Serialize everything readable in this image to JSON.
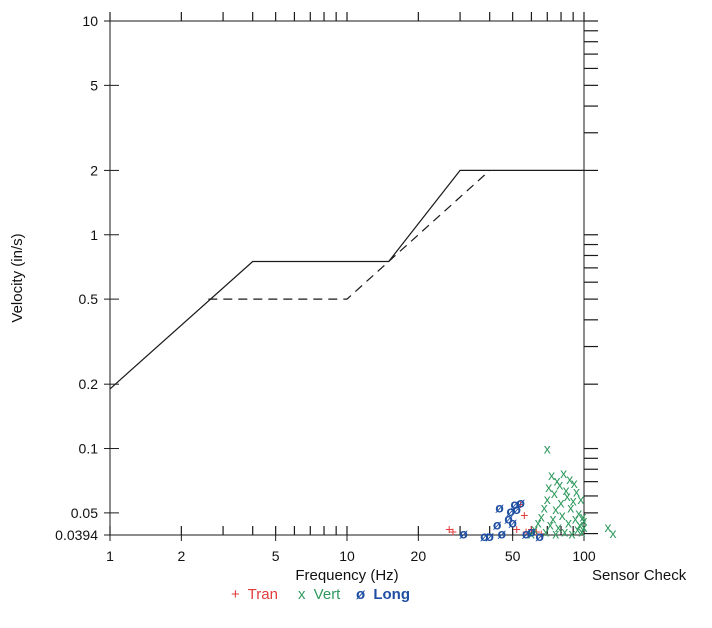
{
  "chart_data": {
    "type": "scatter",
    "xlabel": "Frequency (Hz)",
    "ylabel": "Velocity (in/s)",
    "xscale": "log",
    "yscale": "log",
    "xlim": [
      1,
      100
    ],
    "ylim": [
      0.0394,
      10
    ],
    "xticks": [
      {
        "value": 1,
        "label": "1"
      },
      {
        "value": 2,
        "label": "2"
      },
      {
        "value": 5,
        "label": "5"
      },
      {
        "value": 10,
        "label": "10"
      },
      {
        "value": 20,
        "label": "20"
      },
      {
        "value": 50,
        "label": "50"
      },
      {
        "value": 100,
        "label": "100"
      }
    ],
    "yticks": [
      {
        "value": 10,
        "label": "10"
      },
      {
        "value": 5,
        "label": "5"
      },
      {
        "value": 2,
        "label": "2"
      },
      {
        "value": 1,
        "label": "1"
      },
      {
        "value": 0.5,
        "label": "0.5"
      },
      {
        "value": 0.2,
        "label": "0.2"
      },
      {
        "value": 0.1,
        "label": "0.1"
      },
      {
        "value": 0.05,
        "label": "0.05"
      },
      {
        "value": 0.0394,
        "label": "0.0394"
      }
    ],
    "reference_lines": [
      {
        "style": "solid",
        "points": [
          [
            1,
            0.19
          ],
          [
            4,
            0.75
          ],
          [
            15,
            0.75
          ],
          [
            30,
            2
          ],
          [
            100,
            2
          ]
        ]
      },
      {
        "style": "dashed",
        "points": [
          [
            2.6,
            0.5
          ],
          [
            10,
            0.5
          ],
          [
            40,
            2
          ]
        ]
      }
    ],
    "series": [
      {
        "name": "Tran",
        "symbol": "+",
        "color": "#e23b3b",
        "points": [
          [
            27,
            0.042
          ],
          [
            28,
            0.041
          ],
          [
            52,
            0.042
          ],
          [
            54,
            0.055
          ],
          [
            56,
            0.049
          ],
          [
            57,
            0.041
          ],
          [
            60,
            0.042
          ],
          [
            63,
            0.041
          ],
          [
            66,
            0.04
          ]
        ]
      },
      {
        "name": "Vert",
        "symbol": "x",
        "color": "#2f9a5e",
        "points": [
          [
            60,
            0.04
          ],
          [
            62,
            0.042
          ],
          [
            64,
            0.045
          ],
          [
            66,
            0.048
          ],
          [
            68,
            0.053
          ],
          [
            69,
            0.041
          ],
          [
            70,
            0.058
          ],
          [
            70,
            0.1
          ],
          [
            71,
            0.066
          ],
          [
            72,
            0.044
          ],
          [
            73,
            0.075
          ],
          [
            74,
            0.047
          ],
          [
            75,
            0.062
          ],
          [
            76,
            0.052
          ],
          [
            76,
            0.04
          ],
          [
            77,
            0.071
          ],
          [
            78,
            0.043
          ],
          [
            79,
            0.068
          ],
          [
            80,
            0.056
          ],
          [
            81,
            0.049
          ],
          [
            82,
            0.077
          ],
          [
            83,
            0.041
          ],
          [
            84,
            0.064
          ],
          [
            85,
            0.06
          ],
          [
            86,
            0.045
          ],
          [
            87,
            0.072
          ],
          [
            88,
            0.053
          ],
          [
            89,
            0.04
          ],
          [
            90,
            0.057
          ],
          [
            91,
            0.069
          ],
          [
            92,
            0.047
          ],
          [
            93,
            0.063
          ],
          [
            94,
            0.042
          ],
          [
            95,
            0.05
          ],
          [
            96,
            0.044
          ],
          [
            97,
            0.058
          ],
          [
            98,
            0.041
          ],
          [
            99,
            0.048
          ],
          [
            100,
            0.043
          ],
          [
            100,
            0.046
          ]
        ]
      },
      {
        "name": "Long",
        "symbol": "ø",
        "color": "#1f4fa3",
        "points": [
          [
            31,
            0.04
          ],
          [
            38,
            0.039
          ],
          [
            40,
            0.039
          ],
          [
            43,
            0.044
          ],
          [
            44,
            0.053
          ],
          [
            45,
            0.04
          ],
          [
            48,
            0.047
          ],
          [
            49,
            0.051
          ],
          [
            50,
            0.045
          ],
          [
            51,
            0.055
          ],
          [
            52,
            0.052
          ],
          [
            54,
            0.056
          ],
          [
            57,
            0.04
          ],
          [
            60,
            0.041
          ],
          [
            65,
            0.039
          ]
        ]
      }
    ],
    "legend_position": "bottom-center",
    "annotation": "Sensor Check"
  }
}
